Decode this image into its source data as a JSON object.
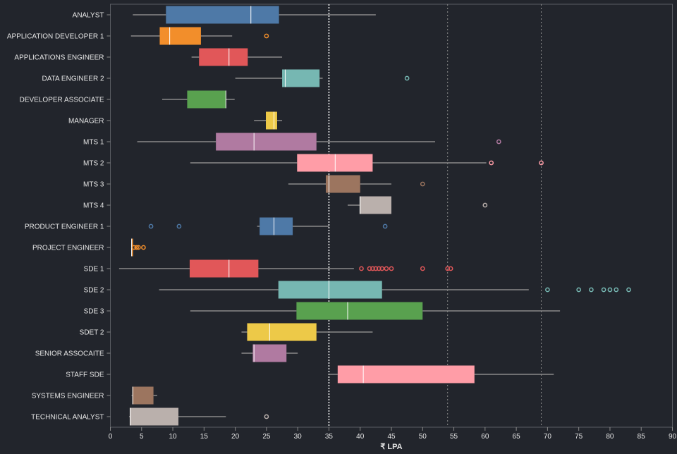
{
  "chart_data": {
    "type": "boxplot",
    "xlabel": "₹ LPA",
    "xlim": [
      0,
      90
    ],
    "x_ticks": [
      0,
      5,
      10,
      15,
      20,
      25,
      30,
      35,
      40,
      45,
      50,
      55,
      60,
      65,
      70,
      75,
      80,
      85,
      90
    ],
    "reference_lines": [
      {
        "x": 35,
        "style": "dotted",
        "color": "#ffffff"
      },
      {
        "x": 54,
        "style": "dotted",
        "color": "#8a8a8a"
      },
      {
        "x": 69,
        "style": "dotted",
        "color": "#8a8a8a"
      }
    ],
    "series": [
      {
        "category": "ANALYST",
        "min": 3.6,
        "q1": 8.9,
        "median": 22.5,
        "q3": 27,
        "max": 42.5,
        "outliers": [],
        "color": "#4e79a7"
      },
      {
        "category": "APPLICATION DEVELOPER 1",
        "min": 3.3,
        "q1": 7.9,
        "median": 9.5,
        "q3": 14.5,
        "max": 19.5,
        "outliers": [
          25
        ],
        "color": "#f28e2b"
      },
      {
        "category": "APPLICATIONS ENGINEER",
        "min": 13,
        "q1": 14.2,
        "median": 19,
        "q3": 22,
        "max": 27.5,
        "outliers": [],
        "color": "#e15759"
      },
      {
        "category": "DATA ENGINEER 2",
        "min": 20,
        "q1": 27.5,
        "median": 28,
        "q3": 33.5,
        "max": 34,
        "outliers": [
          47.5
        ],
        "color": "#76b7b2"
      },
      {
        "category": "DEVELOPER ASSOCIATE",
        "min": 8.3,
        "q1": 12.3,
        "median": 18.5,
        "q3": 18.5,
        "max": 19.9,
        "outliers": [],
        "color": "#59a14f"
      },
      {
        "category": "MANAGER",
        "min": 23,
        "q1": 24.9,
        "median": 26.2,
        "q3": 26.7,
        "max": 27.5,
        "outliers": [],
        "color": "#edc948"
      },
      {
        "category": "MTS 1",
        "min": 4.3,
        "q1": 16.9,
        "median": 23,
        "q3": 33,
        "max": 52,
        "outliers": [
          62.2
        ],
        "color": "#b07aa1"
      },
      {
        "category": "MTS 2",
        "min": 12.8,
        "q1": 29.9,
        "median": 36,
        "q3": 42,
        "max": 60.2,
        "outliers": [
          61,
          69
        ],
        "color": "#ff9da7"
      },
      {
        "category": "MTS 3",
        "min": 28.5,
        "q1": 34.5,
        "median": 35,
        "q3": 40,
        "max": 45,
        "outliers": [
          50
        ],
        "color": "#9c755f"
      },
      {
        "category": "MTS 4",
        "min": 38,
        "q1": 39.9,
        "median": 40,
        "q3": 45,
        "max": 45,
        "outliers": [
          60
        ],
        "color": "#bab0ac"
      },
      {
        "category": "PRODUCT ENGINEER 1",
        "min": 23.5,
        "q1": 23.9,
        "median": 26.2,
        "q3": 29.2,
        "max": 35,
        "outliers": [
          6.5,
          11,
          44
        ],
        "color": "#4e79a7"
      },
      {
        "category": "PROJECT ENGINEER",
        "min": 3.4,
        "q1": 3.4,
        "median": 3.4,
        "q3": 3.5,
        "max": 3.6,
        "outliers": [
          3.8,
          4.2,
          4.5,
          5.3
        ],
        "color": "#f28e2b"
      },
      {
        "category": "SDE 1",
        "min": 1.4,
        "q1": 12.7,
        "median": 19,
        "q3": 23.7,
        "max": 39,
        "outliers": [
          40.2,
          41.5,
          42,
          42.5,
          43,
          43.5,
          44.2,
          45,
          50,
          54,
          54.5
        ],
        "color": "#e15759"
      },
      {
        "category": "SDE 2",
        "min": 7.8,
        "q1": 26.9,
        "median": 35,
        "q3": 43.5,
        "max": 67,
        "outliers": [
          70,
          75,
          77,
          79,
          80,
          81,
          83
        ],
        "color": "#76b7b2"
      },
      {
        "category": "SDE 3",
        "min": 12.8,
        "q1": 29.8,
        "median": 38,
        "q3": 50,
        "max": 72,
        "outliers": [],
        "color": "#59a14f"
      },
      {
        "category": "SDET 2",
        "min": 21,
        "q1": 21.9,
        "median": 25.5,
        "q3": 33,
        "max": 42,
        "outliers": [],
        "color": "#edc948"
      },
      {
        "category": "SENIOR ASSOCAITE",
        "min": 21,
        "q1": 22.8,
        "median": 23,
        "q3": 28.2,
        "max": 30,
        "outliers": [],
        "color": "#b07aa1"
      },
      {
        "category": "STAFF SDE",
        "min": 35,
        "q1": 36.4,
        "median": 40.5,
        "q3": 58.3,
        "max": 71,
        "outliers": [],
        "color": "#ff9da7"
      },
      {
        "category": "SYSTEMS ENGINEER",
        "min": 3.4,
        "q1": 3.5,
        "median": 3.6,
        "q3": 6.9,
        "max": 7.5,
        "outliers": [],
        "color": "#9c755f"
      },
      {
        "category": "TECHNICAL ANALYST",
        "min": 3,
        "q1": 3.1,
        "median": 3.2,
        "q3": 10.9,
        "max": 18.5,
        "outliers": [
          25
        ],
        "color": "#bab0ac"
      }
    ]
  }
}
